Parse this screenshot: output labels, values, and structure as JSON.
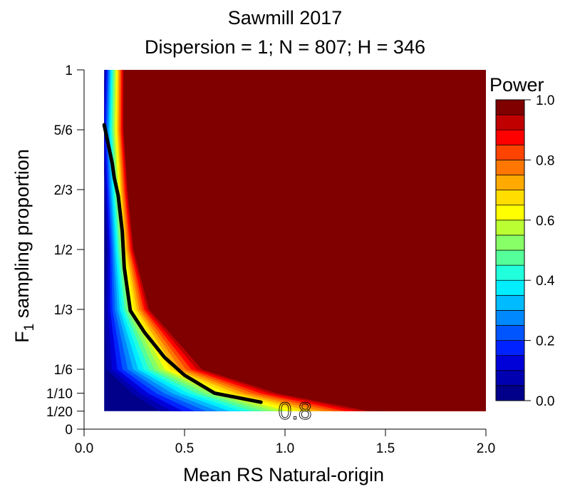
{
  "chart_data": {
    "type": "heatmap",
    "title": "Sawmill 2017",
    "subtitle": "Dispersion = 1; N = 807; H = 346",
    "xlabel": "Mean RS Natural-origin",
    "ylabel_main": "F",
    "ylabel_sub": "1",
    "ylabel_rest": " sampling proportion",
    "xlim": [
      0,
      2
    ],
    "ylim": [
      0,
      1
    ],
    "x_ticks": [
      {
        "value": 0,
        "label": "0.0"
      },
      {
        "value": 0.5,
        "label": "0.5"
      },
      {
        "value": 1.0,
        "label": "1.0"
      },
      {
        "value": 1.5,
        "label": "1.5"
      },
      {
        "value": 2.0,
        "label": "2.0"
      }
    ],
    "y_ticks": [
      {
        "value": 0,
        "label": "0"
      },
      {
        "value": 0.05,
        "label": "1/20"
      },
      {
        "value": 0.1,
        "label": "1/10"
      },
      {
        "value": 0.1667,
        "label": "1/6"
      },
      {
        "value": 0.3333,
        "label": "1/3"
      },
      {
        "value": 0.5,
        "label": "1/2"
      },
      {
        "value": 0.6667,
        "label": "2/3"
      },
      {
        "value": 0.8333,
        "label": "5/6"
      },
      {
        "value": 1,
        "label": "1"
      }
    ],
    "data_extent": {
      "x": [
        0.1,
        2.0
      ],
      "y": [
        0.05,
        1.0
      ]
    },
    "colorbar": {
      "title": "Power",
      "range": [
        0,
        1
      ],
      "ticks": [
        {
          "value": 0.0,
          "label": "0.0"
        },
        {
          "value": 0.2,
          "label": "0.2"
        },
        {
          "value": 0.4,
          "label": "0.4"
        },
        {
          "value": 0.6,
          "label": "0.6"
        },
        {
          "value": 0.8,
          "label": "0.8"
        },
        {
          "value": 1.0,
          "label": "1.0"
        }
      ],
      "colors": [
        "#00008b",
        "#0000b0",
        "#0000d8",
        "#0022ff",
        "#0055ff",
        "#0088ff",
        "#00bbff",
        "#00eeff",
        "#22ffdd",
        "#55ff99",
        "#88ff66",
        "#bbff33",
        "#ffff00",
        "#ffdd00",
        "#ffaa00",
        "#ff7700",
        "#ff4400",
        "#ff0000",
        "#c00000",
        "#800000"
      ]
    },
    "power_rise_x": [
      {
        "y": 1.0,
        "x_low": 0.1,
        "x_high": 0.2
      },
      {
        "y": 0.8333,
        "x_low": 0.09,
        "x_high": 0.2
      },
      {
        "y": 0.6667,
        "x_low": 0.1,
        "x_high": 0.22
      },
      {
        "y": 0.5,
        "x_low": 0.11,
        "x_high": 0.25
      },
      {
        "y": 0.3333,
        "x_low": 0.1,
        "x_high": 0.33
      },
      {
        "y": 0.1667,
        "x_low": 0.1,
        "x_high": 0.6
      },
      {
        "y": 0.1,
        "x_low": 0.22,
        "x_high": 0.98
      },
      {
        "y": 0.05,
        "x_low": 0.35,
        "x_high": 1.45
      }
    ],
    "contour_0_8": {
      "level": 0.8,
      "label": "0.8",
      "points": [
        [
          0.1,
          0.847
        ],
        [
          0.14,
          0.74
        ],
        [
          0.15,
          0.7
        ],
        [
          0.17,
          0.65
        ],
        [
          0.19,
          0.55
        ],
        [
          0.2,
          0.45
        ],
        [
          0.23,
          0.33
        ],
        [
          0.3,
          0.27
        ],
        [
          0.4,
          0.2
        ],
        [
          0.5,
          0.15
        ],
        [
          0.65,
          0.1
        ],
        [
          0.88,
          0.075
        ]
      ]
    }
  }
}
